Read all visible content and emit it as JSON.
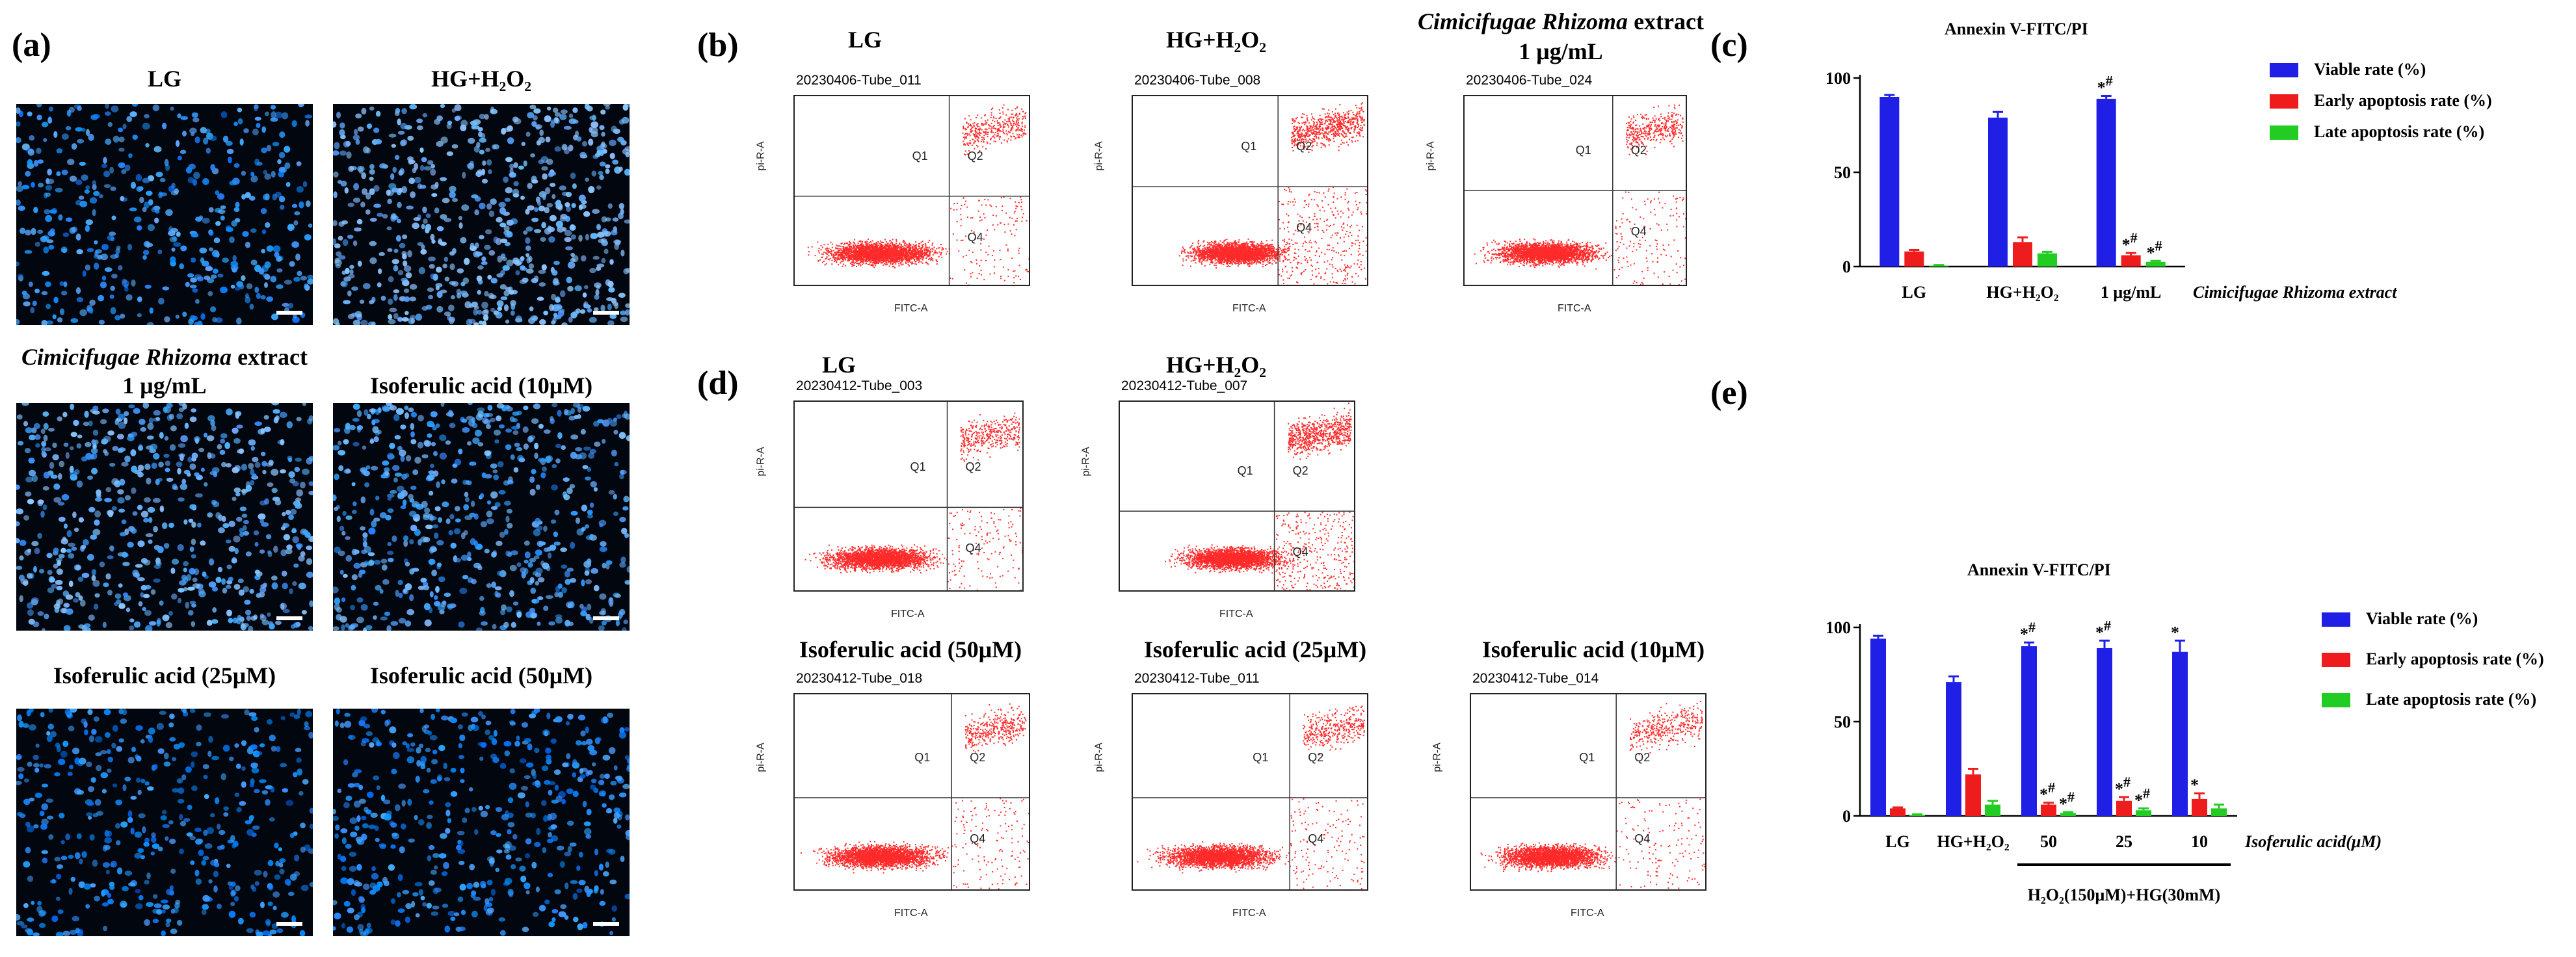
{
  "panel_letters": {
    "a": "(a)",
    "b": "(b)",
    "c": "(c)",
    "d": "(d)",
    "e": "(e)"
  },
  "panel_a": {
    "captions": {
      "lg": "LG",
      "hg_h2o2": "HG+H₂O₂",
      "crx_line1": "Cimicifugae Rhizoma",
      "crx_line1_suffix": " extract",
      "crx_line2": "1 μg/mL",
      "iso10": "Isoferulic acid (10μM)",
      "iso25": "Isoferulic acid (25μM)",
      "iso50": "Isoferulic acid (50μM)"
    }
  },
  "panel_b": {
    "captions": {
      "lg": "LG",
      "hg_h2o2": "HG+H₂O₂",
      "crx_line1": "Cimicifugae Rhizoma",
      "crx_line1_suffix": " extract",
      "crx_line2": "1 μg/mL"
    },
    "plots": [
      {
        "tube": "20230406-Tube_011"
      },
      {
        "tube": "20230406-Tube_008"
      },
      {
        "tube": "20230406-Tube_024"
      }
    ]
  },
  "panel_d": {
    "captions": {
      "lg": "LG",
      "hg_h2o2": "HG+H₂O₂",
      "iso50": "Isoferulic acid (50μM)",
      "iso25": "Isoferulic acid (25μM)",
      "iso10": "Isoferulic acid (10μM)"
    },
    "plots": [
      {
        "tube": "20230412-Tube_003"
      },
      {
        "tube": "20230412-Tube_007"
      },
      {
        "tube": "20230412-Tube_018"
      },
      {
        "tube": "20230412-Tube_011"
      },
      {
        "tube": "20230412-Tube_014"
      }
    ]
  },
  "flow_labels": {
    "x": "FITC-A",
    "y": "pi-R-A",
    "q1": "Q1",
    "q2": "Q2",
    "q4": "Q4"
  },
  "colors": {
    "viable": "#1f1fe6",
    "early": "#ee1c1c",
    "late": "#22cc22",
    "nuclei": "#1a8cff",
    "dots": "#ff2a2a"
  },
  "chart_data": [
    {
      "type": "bar",
      "title": "Annexin V-FITC/PI",
      "categories": [
        "LG",
        "HG+H₂O₂",
        "1 μg/mL"
      ],
      "category_suffix": "Cimicifugae Rhizoma extract",
      "ylim": [
        0,
        100
      ],
      "yticks": [
        0,
        50,
        100
      ],
      "series": [
        {
          "name": "Viable rate (%)",
          "values": [
            90,
            79,
            89
          ],
          "errors": [
            1,
            3,
            1.5
          ]
        },
        {
          "name": "Early apoptosis rate (%)",
          "values": [
            8,
            13,
            6
          ],
          "errors": [
            0.8,
            2.5,
            1.2
          ]
        },
        {
          "name": "Late apoptosis rate (%)",
          "values": [
            0.5,
            7,
            2.5
          ],
          "errors": [
            0.3,
            0.8,
            0.5
          ]
        }
      ],
      "annotations": [
        {
          "category": "1 μg/mL",
          "series": "Viable rate (%)",
          "text": "*#"
        },
        {
          "category": "1 μg/mL",
          "series": "Early apoptosis rate (%)",
          "text": "*#"
        },
        {
          "category": "1 μg/mL",
          "series": "Late apoptosis rate (%)",
          "text": "*#"
        }
      ],
      "legend": "right"
    },
    {
      "type": "bar",
      "title": "Annexin V-FITC/PI",
      "categories": [
        "LG",
        "HG+H₂O₂",
        "50",
        "25",
        "10"
      ],
      "category_suffix": "Isoferulic acid(μM)",
      "group_label": "H₂O₂(150μM)+HG(30mM)",
      "ylim": [
        0,
        100
      ],
      "yticks": [
        0,
        50,
        100
      ],
      "series": [
        {
          "name": "Viable rate (%)",
          "values": [
            94,
            71,
            90,
            89,
            87
          ],
          "errors": [
            1.5,
            3,
            2,
            4,
            6
          ]
        },
        {
          "name": "Early apoptosis rate (%)",
          "values": [
            4,
            22,
            6,
            8,
            9
          ],
          "errors": [
            0.5,
            3,
            1,
            2,
            3
          ]
        },
        {
          "name": "Late apoptosis rate (%)",
          "values": [
            0.5,
            6,
            1.5,
            3,
            4
          ],
          "errors": [
            0.3,
            2,
            0.5,
            1,
            2
          ]
        }
      ],
      "annotations": [
        {
          "category": "50",
          "series": "Viable rate (%)",
          "text": "*#"
        },
        {
          "category": "25",
          "series": "Viable rate (%)",
          "text": "*#"
        },
        {
          "category": "10",
          "series": "Viable rate (%)",
          "text": "*"
        },
        {
          "category": "50",
          "series": "Early apoptosis rate (%)",
          "text": "*#"
        },
        {
          "category": "25",
          "series": "Early apoptosis rate (%)",
          "text": "*#"
        },
        {
          "category": "10",
          "series": "Early apoptosis rate (%)",
          "text": "*"
        },
        {
          "category": "50",
          "series": "Late apoptosis rate (%)",
          "text": "*#"
        },
        {
          "category": "25",
          "series": "Late apoptosis rate (%)",
          "text": "*#"
        }
      ],
      "legend": "right"
    }
  ]
}
